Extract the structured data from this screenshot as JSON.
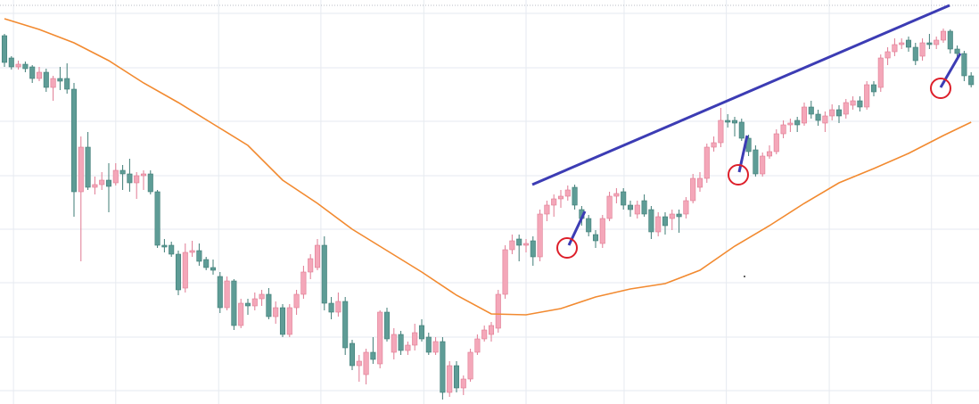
{
  "chart_data": {
    "type": "candlestick",
    "categories": [
      null,
      null,
      null,
      null,
      null,
      null,
      null,
      null,
      null,
      null,
      null,
      null,
      null,
      null,
      null,
      null,
      null,
      null,
      null,
      null,
      null,
      null,
      null,
      null,
      null,
      null,
      null,
      null,
      null,
      null,
      null,
      null,
      null,
      null,
      null,
      null,
      null,
      null,
      null,
      null,
      null,
      null,
      null,
      null,
      null,
      null,
      null,
      null,
      null,
      null,
      null,
      null,
      null,
      null,
      null,
      null,
      null,
      null,
      null,
      null,
      null,
      null,
      null,
      null,
      null,
      null,
      null,
      null,
      null,
      null,
      null,
      null,
      null,
      null,
      null,
      null,
      null,
      null,
      null,
      null,
      null,
      null,
      null,
      null,
      null,
      null,
      null,
      null,
      null,
      null,
      null,
      null,
      null,
      null,
      null,
      null,
      null,
      null,
      null,
      null,
      null,
      null,
      null,
      null,
      null,
      null,
      null,
      null,
      null,
      null,
      null,
      null,
      null,
      null,
      null,
      null,
      null,
      null,
      null,
      null,
      null,
      null,
      null,
      null,
      null,
      null,
      null,
      null,
      null,
      null,
      null,
      null,
      null,
      null,
      null,
      null,
      null,
      null,
      null,
      null
    ],
    "open": [
      413,
      388,
      378,
      381,
      378,
      365,
      372,
      355,
      365,
      365,
      353,
      238,
      288,
      243,
      246,
      251,
      248,
      262,
      258,
      248,
      256,
      258,
      238,
      178,
      178,
      168,
      130,
      170,
      172,
      162,
      153,
      143,
      108,
      138,
      88,
      113,
      110,
      118,
      123,
      98,
      108,
      78,
      108,
      123,
      148,
      153,
      178,
      113,
      103,
      115,
      68,
      43,
      33,
      58,
      45,
      103,
      58,
      78,
      60,
      66,
      88,
      75,
      58,
      70,
      13,
      43,
      18,
      28,
      58,
      73,
      78,
      85,
      123,
      173,
      185,
      178,
      183,
      165,
      213,
      223,
      230,
      233,
      243,
      218,
      208,
      190,
      180,
      208,
      233,
      238,
      223,
      213,
      228,
      218,
      193,
      210,
      208,
      213,
      213,
      228,
      243,
      253,
      288,
      293,
      318,
      318,
      316,
      298,
      285,
      258,
      278,
      283,
      303,
      313,
      318,
      315,
      333,
      325,
      315,
      323,
      330,
      325,
      335,
      340,
      333,
      358,
      355,
      388,
      395,
      403,
      408,
      400,
      390,
      405,
      403,
      408,
      418,
      398,
      393,
      368
    ],
    "high": [
      415,
      390,
      385,
      384,
      380,
      378,
      376,
      368,
      378,
      382,
      360,
      300,
      305,
      255,
      260,
      270,
      270,
      268,
      275,
      260,
      262,
      262,
      240,
      185,
      182,
      172,
      180,
      183,
      180,
      165,
      162,
      148,
      143,
      140,
      118,
      118,
      125,
      128,
      130,
      115,
      112,
      112,
      128,
      155,
      168,
      185,
      188,
      120,
      125,
      120,
      72,
      55,
      62,
      75,
      105,
      108,
      85,
      82,
      70,
      90,
      95,
      80,
      75,
      75,
      48,
      48,
      32,
      62,
      78,
      88,
      92,
      128,
      178,
      190,
      190,
      185,
      188,
      218,
      228,
      235,
      240,
      245,
      246,
      222,
      212,
      195,
      212,
      238,
      242,
      242,
      228,
      228,
      235,
      222,
      215,
      215,
      218,
      218,
      232,
      258,
      260,
      292,
      300,
      332,
      325,
      322,
      320,
      302,
      290,
      282,
      290,
      308,
      318,
      320,
      322,
      338,
      340,
      330,
      328,
      336,
      335,
      342,
      345,
      345,
      362,
      362,
      392,
      400,
      410,
      410,
      412,
      405,
      410,
      415,
      412,
      421,
      420,
      402,
      396,
      372
    ],
    "low": [
      378,
      375,
      375,
      372,
      360,
      362,
      350,
      340,
      352,
      348,
      210,
      160,
      240,
      235,
      240,
      215,
      245,
      240,
      238,
      230,
      240,
      235,
      175,
      170,
      165,
      122,
      125,
      165,
      155,
      150,
      145,
      102,
      105,
      83,
      85,
      100,
      105,
      110,
      95,
      90,
      75,
      75,
      100,
      118,
      140,
      150,
      105,
      95,
      98,
      55,
      38,
      25,
      22,
      45,
      40,
      70,
      50,
      55,
      55,
      60,
      70,
      55,
      55,
      5,
      8,
      13,
      10,
      25,
      55,
      70,
      70,
      80,
      118,
      168,
      160,
      170,
      155,
      160,
      205,
      210,
      220,
      228,
      218,
      200,
      188,
      175,
      175,
      205,
      225,
      218,
      210,
      208,
      210,
      185,
      188,
      190,
      195,
      192,
      208,
      225,
      238,
      248,
      283,
      288,
      310,
      300,
      295,
      278,
      255,
      255,
      275,
      280,
      298,
      305,
      305,
      312,
      320,
      312,
      305,
      318,
      315,
      320,
      330,
      328,
      330,
      345,
      350,
      380,
      390,
      398,
      395,
      380,
      385,
      398,
      398,
      405,
      393,
      388,
      362,
      355
    ],
    "close": [
      383,
      378,
      381,
      376,
      365,
      372,
      355,
      365,
      362,
      353,
      238,
      288,
      243,
      246,
      251,
      244,
      262,
      258,
      248,
      256,
      258,
      238,
      178,
      176,
      168,
      128,
      170,
      172,
      160,
      153,
      150,
      108,
      138,
      88,
      113,
      110,
      118,
      123,
      98,
      108,
      78,
      108,
      123,
      148,
      163,
      178,
      113,
      103,
      115,
      63,
      43,
      48,
      58,
      50,
      103,
      73,
      78,
      60,
      66,
      80,
      73,
      58,
      70,
      13,
      43,
      18,
      28,
      58,
      73,
      83,
      88,
      123,
      173,
      183,
      178,
      180,
      165,
      213,
      223,
      230,
      233,
      240,
      223,
      208,
      193,
      183,
      208,
      233,
      236,
      223,
      218,
      223,
      213,
      193,
      210,
      200,
      213,
      210,
      228,
      253,
      253,
      288,
      293,
      318,
      316,
      315,
      298,
      283,
      258,
      278,
      283,
      303,
      313,
      315,
      313,
      333,
      325,
      318,
      323,
      330,
      323,
      338,
      340,
      333,
      358,
      350,
      388,
      395,
      403,
      405,
      400,
      385,
      405,
      403,
      408,
      418,
      398,
      393,
      368,
      358
    ],
    "up_color": "#f4a7b9",
    "up_edge": "#e07a92",
    "down_color": "#5e9c96",
    "down_edge": "#3f7c76",
    "ma": {
      "color": "#f28a30",
      "x": [
        0,
        5,
        10,
        15,
        20,
        25,
        30,
        35,
        40,
        45,
        50,
        55,
        60,
        65,
        70,
        75,
        80,
        85,
        90,
        95,
        100,
        105,
        110,
        115,
        120,
        125,
        130,
        135,
        139
      ],
      "values": [
        432,
        420,
        405,
        385,
        360,
        338,
        314,
        290,
        251,
        225,
        196,
        172,
        148,
        122,
        101,
        100,
        107,
        120,
        129,
        135,
        150,
        177,
        200,
        225,
        248,
        264,
        281,
        301,
        316
      ]
    },
    "xlim": [
      -0.64,
      140.13
    ],
    "ylim": [
      0,
      453
    ],
    "xticks": [
      1.3,
      16,
      30.8,
      45.5,
      60.3,
      75,
      89.1,
      103.8,
      118.6,
      133.3
    ],
    "yticks": [
      15,
      75,
      136,
      196,
      256,
      317,
      377,
      438
    ],
    "grid": true
  }
}
